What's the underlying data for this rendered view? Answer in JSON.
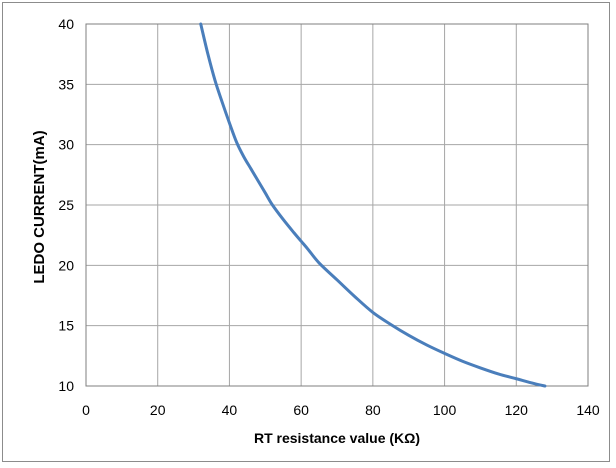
{
  "chart_data": {
    "type": "line",
    "title": "",
    "xlabel": "RT resistance value   (KΩ)",
    "ylabel": "LEDO CURRENT(mA)",
    "xlim": [
      0,
      140
    ],
    "ylim": [
      10,
      40
    ],
    "x_ticks": [
      "0",
      "20",
      "40",
      "60",
      "80",
      "100",
      "120",
      "140"
    ],
    "y_ticks": [
      "10",
      "15",
      "20",
      "25",
      "30",
      "35",
      "40"
    ],
    "grid": true,
    "legend": "none",
    "series": [
      {
        "color": "#4a7ebb",
        "x": [
          32,
          34,
          36,
          38,
          40,
          42,
          44,
          46,
          48,
          50,
          52,
          55,
          58,
          60,
          62,
          65,
          70,
          75,
          80,
          85,
          90,
          95,
          100,
          105,
          110,
          115,
          120,
          125,
          128
        ],
        "y": [
          40,
          37.5,
          35.3,
          33.5,
          31.8,
          30.2,
          29,
          28,
          27,
          26,
          25,
          23.8,
          22.7,
          22,
          21.3,
          20.2,
          18.8,
          17.4,
          16.1,
          15.1,
          14.2,
          13.4,
          12.7,
          12.05,
          11.5,
          11,
          10.6,
          10.2,
          10
        ]
      }
    ]
  }
}
